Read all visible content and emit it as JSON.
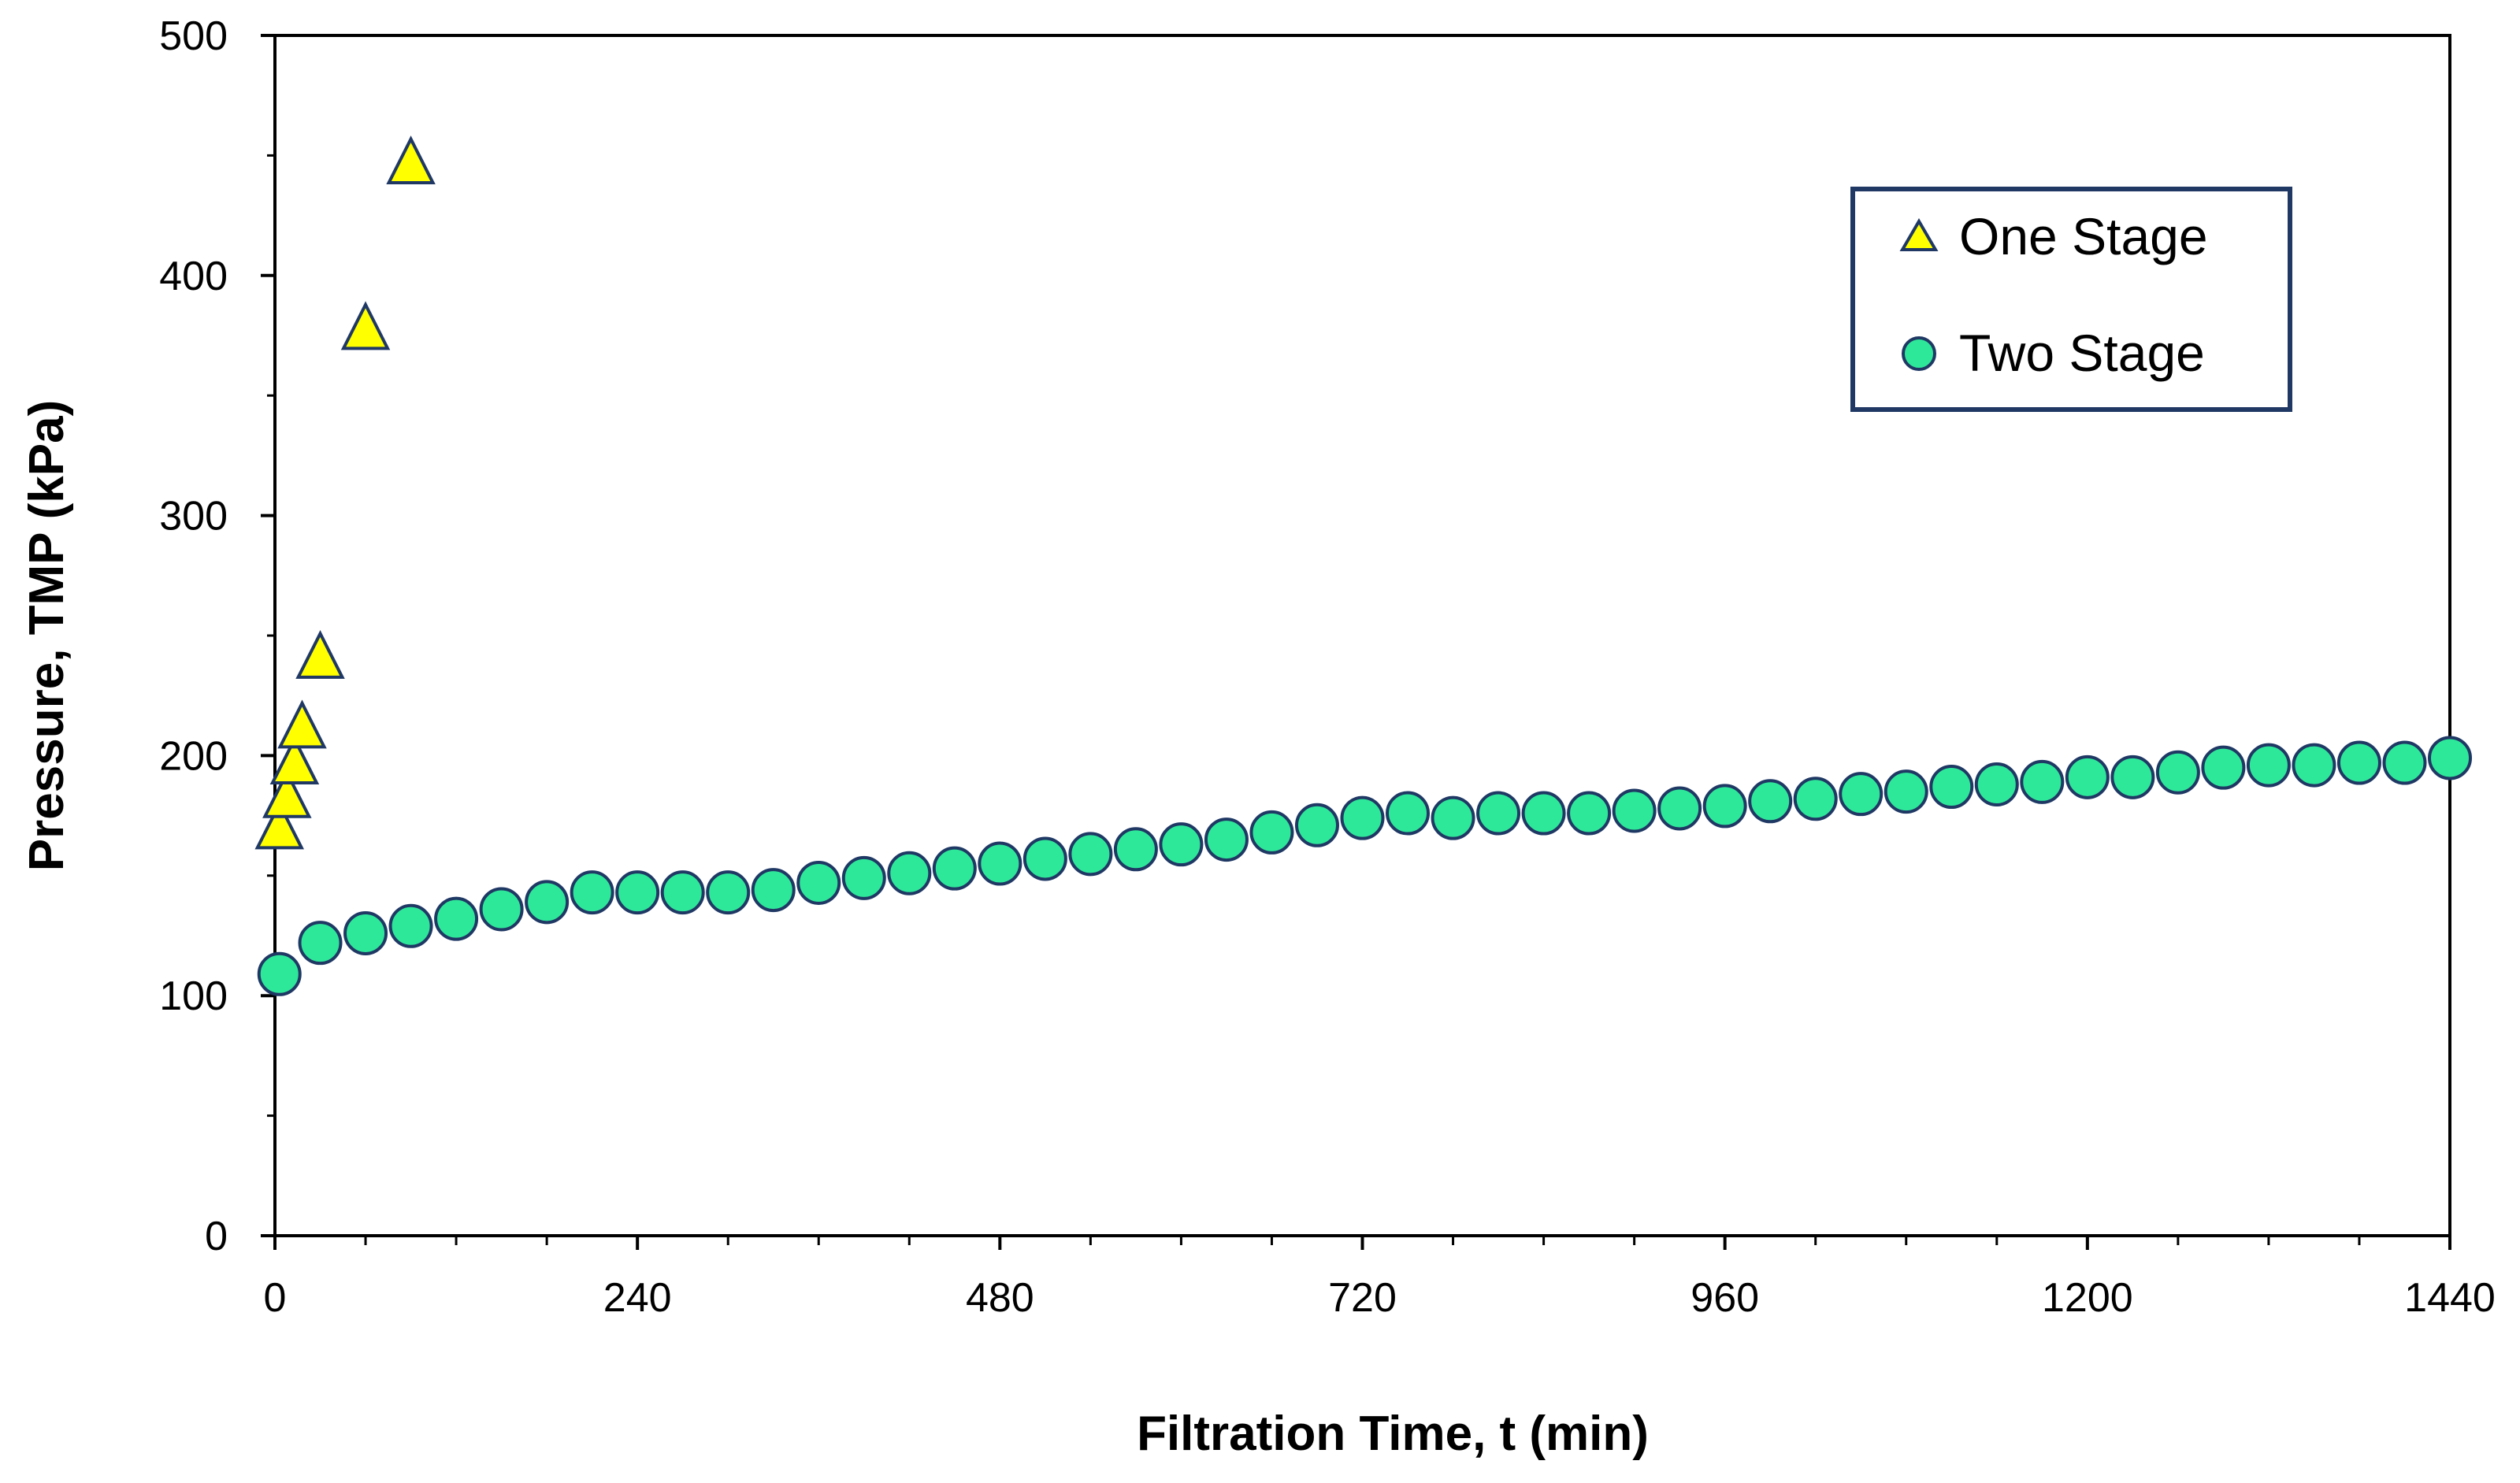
{
  "chart_data": {
    "type": "scatter",
    "title": "",
    "xlabel": "Filtration Time, t (min)",
    "ylabel": "Pressure, TMP (kPa)",
    "xlim": [
      0,
      1440
    ],
    "ylim": [
      0,
      500
    ],
    "xticks": [
      0,
      240,
      480,
      720,
      960,
      1200,
      1440
    ],
    "xtick_labels": [
      "0",
      "240",
      "480",
      "720",
      "960",
      "1200",
      "1440"
    ],
    "yticks": [
      0,
      100,
      200,
      300,
      400,
      500
    ],
    "ytick_labels": [
      "0",
      "100",
      "200",
      "300",
      "400",
      "500"
    ],
    "grid": false,
    "legend_position": "top-right",
    "series": [
      {
        "name": "One Stage",
        "marker": "triangle",
        "color": "#FFFF00",
        "edge_color": "#1F3864",
        "x": [
          3,
          8,
          13,
          18,
          30,
          60,
          90
        ],
        "y": [
          170,
          183,
          197,
          212,
          241,
          378,
          447
        ]
      },
      {
        "name": "Two Stage",
        "marker": "circle",
        "color": "#2EE89A",
        "edge_color": "#1F3864",
        "x": [
          3,
          30,
          60,
          90,
          120,
          150,
          180,
          210,
          240,
          270,
          300,
          330,
          360,
          390,
          420,
          450,
          480,
          510,
          540,
          570,
          600,
          630,
          660,
          690,
          720,
          750,
          780,
          810,
          840,
          870,
          900,
          930,
          960,
          990,
          1020,
          1050,
          1080,
          1110,
          1140,
          1170,
          1200,
          1230,
          1260,
          1290,
          1320,
          1350,
          1380,
          1410,
          1440
        ],
        "y": [
          109,
          122,
          126,
          129,
          132,
          136,
          139,
          143,
          143,
          143,
          143,
          144,
          147,
          149,
          151,
          153,
          155,
          157,
          159,
          161,
          163,
          165,
          168,
          171,
          174,
          176,
          174,
          176,
          176,
          176,
          177,
          178,
          179,
          181,
          182,
          184,
          185,
          187,
          188,
          189,
          191,
          191,
          193,
          195,
          196,
          196,
          197,
          197,
          199
        ]
      }
    ]
  }
}
